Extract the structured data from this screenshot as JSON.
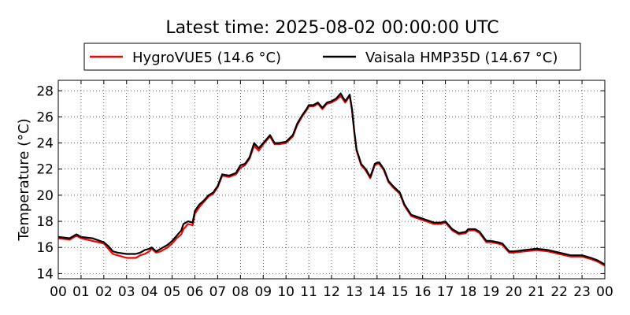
{
  "chart_data": {
    "type": "line",
    "title": "Latest time: 2025-08-02 00:00:00 UTC",
    "xlabel": "",
    "ylabel": "Temperature (°C)",
    "xlim": [
      0,
      24
    ],
    "ylim": [
      13.6,
      28.8
    ],
    "x_ticks": [
      0,
      1,
      2,
      3,
      4,
      5,
      6,
      7,
      8,
      9,
      10,
      11,
      12,
      13,
      14,
      15,
      16,
      17,
      18,
      19,
      20,
      21,
      22,
      23,
      24
    ],
    "x_tick_labels": [
      "00",
      "01",
      "02",
      "03",
      "04",
      "05",
      "06",
      "07",
      "08",
      "09",
      "10",
      "11",
      "12",
      "13",
      "14",
      "15",
      "16",
      "17",
      "18",
      "19",
      "20",
      "21",
      "22",
      "23",
      "00"
    ],
    "y_ticks": [
      14,
      16,
      18,
      20,
      22,
      24,
      26,
      28
    ],
    "y_tick_labels": [
      "14",
      "16",
      "18",
      "20",
      "22",
      "24",
      "26",
      "28"
    ],
    "grid": true,
    "legend_position": "top-center",
    "series": [
      {
        "name": "HygroVUE5 (14.6 °C)",
        "color": "#ff0000",
        "x": [
          0,
          0.5,
          0.8,
          1,
          1.5,
          2,
          2.2,
          2.4,
          2.6,
          3,
          3.4,
          3.6,
          3.8,
          4,
          4.1,
          4.3,
          4.5,
          4.8,
          5,
          5.2,
          5.4,
          5.5,
          5.7,
          5.9,
          6,
          6.2,
          6.4,
          6.6,
          6.8,
          7,
          7.2,
          7.5,
          7.8,
          8,
          8.2,
          8.4,
          8.6,
          8.8,
          9,
          9.3,
          9.5,
          9.7,
          10,
          10.3,
          10.5,
          10.7,
          10.9,
          11,
          11.2,
          11.4,
          11.6,
          11.8,
          12,
          12.2,
          12.4,
          12.6,
          12.8,
          12.9,
          13,
          13.1,
          13.3,
          13.5,
          13.7,
          13.9,
          14,
          14.1,
          14.3,
          14.5,
          14.7,
          15,
          15.2,
          15.5,
          16,
          16.5,
          16.8,
          17,
          17.3,
          17.6,
          17.9,
          18,
          18.3,
          18.5,
          18.8,
          19,
          19.3,
          19.5,
          19.8,
          20,
          20.5,
          21,
          21.5,
          22,
          22.5,
          23,
          23.4,
          23.7,
          24
        ],
        "values": [
          16.7,
          16.6,
          16.9,
          16.7,
          16.5,
          16.3,
          15.9,
          15.5,
          15.4,
          15.2,
          15.2,
          15.4,
          15.5,
          15.7,
          15.9,
          15.6,
          15.7,
          16.0,
          16.3,
          16.7,
          17.0,
          17.4,
          17.8,
          17.7,
          18.6,
          19.1,
          19.5,
          19.9,
          20.1,
          20.6,
          21.5,
          21.4,
          21.6,
          22.1,
          22.3,
          22.8,
          23.8,
          23.4,
          23.9,
          24.5,
          23.9,
          23.9,
          24.0,
          24.5,
          25.4,
          26.0,
          26.5,
          26.8,
          26.8,
          27.0,
          26.6,
          27.0,
          27.1,
          27.3,
          27.6,
          27.1,
          27.6,
          26.5,
          24.8,
          23.4,
          22.3,
          21.9,
          21.3,
          22.3,
          22.4,
          22.4,
          21.9,
          21.0,
          20.6,
          20.1,
          19.2,
          18.4,
          18.1,
          17.8,
          17.8,
          17.9,
          17.3,
          17.0,
          17.1,
          17.3,
          17.3,
          17.1,
          16.4,
          16.4,
          16.3,
          16.2,
          15.6,
          15.6,
          15.7,
          15.8,
          15.7,
          15.5,
          15.3,
          15.3,
          15.1,
          14.9,
          14.6
        ]
      },
      {
        "name": "Vaisala HMP35D (14.67 °C)",
        "color": "#000000",
        "x": [
          0,
          0.5,
          0.8,
          1,
          1.5,
          2,
          2.2,
          2.4,
          2.6,
          3,
          3.4,
          3.6,
          3.8,
          4,
          4.1,
          4.3,
          4.5,
          4.8,
          5,
          5.2,
          5.4,
          5.5,
          5.7,
          5.9,
          6,
          6.2,
          6.4,
          6.6,
          6.8,
          7,
          7.2,
          7.5,
          7.8,
          8,
          8.2,
          8.4,
          8.6,
          8.8,
          9,
          9.3,
          9.5,
          9.7,
          10,
          10.3,
          10.5,
          10.7,
          10.9,
          11,
          11.2,
          11.4,
          11.6,
          11.8,
          12,
          12.2,
          12.4,
          12.6,
          12.8,
          12.9,
          13,
          13.1,
          13.3,
          13.5,
          13.7,
          13.9,
          14,
          14.1,
          14.3,
          14.5,
          14.7,
          15,
          15.2,
          15.5,
          16,
          16.5,
          16.8,
          17,
          17.3,
          17.6,
          17.9,
          18,
          18.3,
          18.5,
          18.8,
          19,
          19.3,
          19.5,
          19.8,
          20,
          20.5,
          21,
          21.5,
          22,
          22.5,
          23,
          23.4,
          23.7,
          24
        ],
        "values": [
          16.8,
          16.7,
          17.0,
          16.8,
          16.7,
          16.4,
          16.1,
          15.7,
          15.6,
          15.5,
          15.5,
          15.6,
          15.8,
          15.9,
          16.0,
          15.7,
          15.9,
          16.2,
          16.5,
          16.9,
          17.3,
          17.8,
          18.0,
          17.9,
          18.8,
          19.3,
          19.6,
          20.0,
          20.2,
          20.7,
          21.6,
          21.5,
          21.7,
          22.3,
          22.4,
          22.9,
          24.0,
          23.6,
          24.0,
          24.6,
          24.0,
          24.0,
          24.1,
          24.6,
          25.5,
          26.1,
          26.6,
          26.9,
          26.9,
          27.1,
          26.7,
          27.1,
          27.2,
          27.4,
          27.8,
          27.2,
          27.7,
          26.6,
          24.9,
          23.5,
          22.4,
          22.0,
          21.4,
          22.4,
          22.5,
          22.5,
          22.0,
          21.1,
          20.7,
          20.2,
          19.3,
          18.5,
          18.2,
          17.9,
          17.9,
          18.0,
          17.4,
          17.1,
          17.2,
          17.4,
          17.4,
          17.2,
          16.5,
          16.5,
          16.4,
          16.3,
          15.7,
          15.7,
          15.8,
          15.9,
          15.8,
          15.6,
          15.4,
          15.4,
          15.2,
          15.0,
          14.7
        ]
      }
    ]
  }
}
